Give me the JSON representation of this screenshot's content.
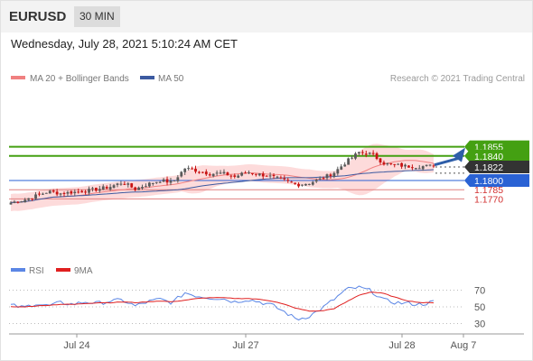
{
  "header": {
    "symbol": "EURUSD",
    "timeframe": "30 MIN"
  },
  "timestamp": "Wednesday, July 28, 2021 5:10:24 AM CET",
  "credit": "Research © 2021 Trading Central",
  "legend": {
    "ma20_label": "MA 20 + Bollinger Bands",
    "ma50_label": "MA 50",
    "rsi_label": "RSI",
    "rsi9_label": "9MA"
  },
  "colors": {
    "candle_up": "#5a5a5a",
    "candle_down": "#c81414",
    "ma20": "#f08080",
    "bollinger_fill": "#fdd7d7",
    "ma50": "#3c5aa0",
    "support": "#2a62d4",
    "resistance": "#44a012",
    "weak_level": "#e08080",
    "current_tag": "#333333",
    "rsi": "#5b86e5",
    "rsi_ma": "#e02020",
    "arrow": "#2e5ea8"
  },
  "chart_data": [
    {
      "type": "candlestick",
      "title": "EURUSD",
      "x_labels": [
        "Jul 24",
        "Jul 27",
        "Jul 28",
        "Aug 7"
      ],
      "ylim": [
        1.175,
        1.187
      ],
      "overlays": [
        "MA 20 + Bollinger Bands",
        "MA 50"
      ],
      "levels": [
        {
          "value": 1.1855,
          "label": "1.1855",
          "kind": "resistance"
        },
        {
          "value": 1.184,
          "label": "1.1840",
          "kind": "resistance"
        },
        {
          "value": 1.1822,
          "label": "1.1822",
          "kind": "current"
        },
        {
          "value": 1.18,
          "label": "1.1800",
          "kind": "support"
        },
        {
          "value": 1.1785,
          "label": "1.1785",
          "kind": "weak"
        },
        {
          "value": 1.177,
          "label": "1.1770",
          "kind": "weak"
        }
      ],
      "close_series": [
        1.1764,
        1.1768,
        1.1775,
        1.1782,
        1.1779,
        1.1781,
        1.1783,
        1.1786,
        1.179,
        1.1797,
        1.1786,
        1.1794,
        1.18,
        1.1797,
        1.182,
        1.1816,
        1.1811,
        1.1812,
        1.1806,
        1.1814,
        1.181,
        1.1806,
        1.18,
        1.1793,
        1.1796,
        1.1803,
        1.1813,
        1.1831,
        1.1846,
        1.1843,
        1.1828,
        1.1825,
        1.1823,
        1.1823,
        1.1824
      ],
      "forecast_target": 1.1855
    },
    {
      "type": "line",
      "title": "RSI",
      "series": [
        {
          "name": "RSI"
        },
        {
          "name": "9MA"
        }
      ],
      "yticks": [
        30,
        50,
        70
      ],
      "ylim": [
        25,
        75
      ],
      "rsi": [
        52,
        49,
        54,
        51,
        55,
        53,
        56,
        54,
        57,
        58,
        51,
        56,
        59,
        55,
        67,
        63,
        61,
        60,
        56,
        59,
        56,
        52,
        44,
        35,
        39,
        48,
        59,
        71,
        73,
        69,
        58,
        55,
        54,
        53,
        56
      ],
      "rsi_ma": [
        50,
        50,
        51,
        52,
        53,
        53,
        54,
        55,
        55,
        56,
        55,
        56,
        57,
        56,
        58,
        60,
        61,
        61,
        60,
        60,
        59,
        57,
        53,
        48,
        45,
        45,
        48,
        56,
        64,
        68,
        66,
        61,
        57,
        55,
        55
      ]
    }
  ]
}
